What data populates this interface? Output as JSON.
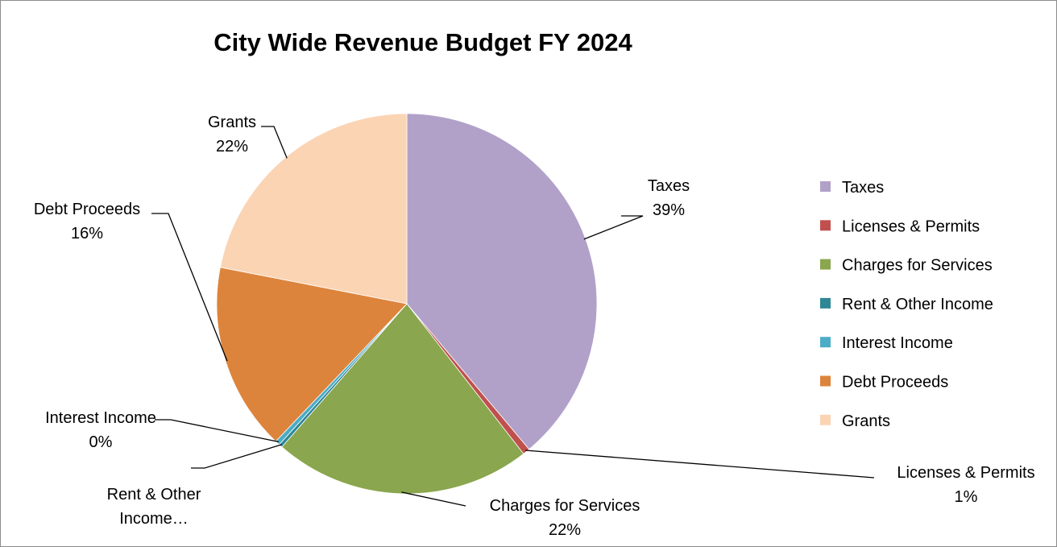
{
  "chart_data": {
    "type": "pie",
    "title": "City Wide Revenue Budget FY 2024",
    "legend_position": "right",
    "slices": [
      {
        "name": "Taxes",
        "value": 39,
        "color": "#b1a1c9",
        "label_lines": [
          "Taxes",
          "39%"
        ]
      },
      {
        "name": "Licenses & Permits",
        "value": 0.6,
        "color": "#c0504d",
        "label_lines": [
          "Licenses & Permits",
          "1%"
        ]
      },
      {
        "name": "Charges for Services",
        "value": 22,
        "color": "#8aa64e",
        "label_lines": [
          "Charges for Services",
          "22%"
        ]
      },
      {
        "name": "Rent & Other Income",
        "value": 0.3,
        "color": "#2f8796",
        "label_lines": [
          "Rent & Other",
          "Income…"
        ]
      },
      {
        "name": "Interest Income",
        "value": 0.4,
        "color": "#4bacc6",
        "label_lines": [
          "Interest Income",
          "0%"
        ]
      },
      {
        "name": "Debt Proceeds",
        "value": 16,
        "color": "#dd843c",
        "label_lines": [
          "Debt Proceeds",
          "16%"
        ]
      },
      {
        "name": "Grants",
        "value": 22,
        "color": "#fbd4b4",
        "label_lines": [
          "Grants",
          "22%"
        ]
      }
    ]
  }
}
